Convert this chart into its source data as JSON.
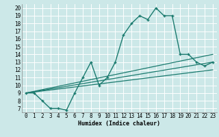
{
  "xlabel": "Humidex (Indice chaleur)",
  "bg_color": "#cce8e8",
  "grid_color": "#ffffff",
  "line_color": "#1a7a6e",
  "x_ticks": [
    0,
    1,
    2,
    3,
    4,
    5,
    6,
    7,
    8,
    9,
    10,
    11,
    12,
    13,
    14,
    15,
    16,
    17,
    18,
    19,
    20,
    21,
    22,
    23
  ],
  "y_ticks": [
    7,
    8,
    9,
    10,
    11,
    12,
    13,
    14,
    15,
    16,
    17,
    18,
    19,
    20
  ],
  "ylim": [
    6.5,
    20.5
  ],
  "xlim": [
    -0.5,
    23.5
  ],
  "main_series": {
    "x": [
      0,
      1,
      2,
      3,
      4,
      5,
      6,
      7,
      8,
      9,
      10,
      11,
      12,
      13,
      14,
      15,
      16,
      17,
      18,
      19,
      20,
      21,
      22,
      23
    ],
    "y": [
      9,
      9,
      8,
      7,
      7,
      6.8,
      9,
      11,
      13,
      10,
      11,
      13,
      16.5,
      18,
      19,
      18.5,
      20,
      19,
      19,
      14,
      14,
      13,
      12.5,
      13
    ]
  },
  "diag_lines": [
    {
      "x0": 0,
      "y0": 9,
      "x1": 23,
      "y1": 14.0
    },
    {
      "x0": 0,
      "y0": 9,
      "x1": 23,
      "y1": 13.0
    },
    {
      "x0": 0,
      "y0": 9,
      "x1": 23,
      "y1": 12.0
    }
  ],
  "xlabel_fontsize": 6.0,
  "tick_fontsize": 5.5
}
